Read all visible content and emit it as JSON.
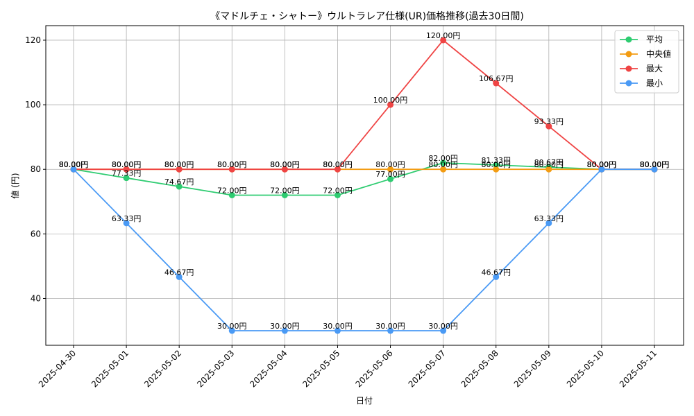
{
  "chart_data": {
    "type": "line",
    "title": "《マドルチェ・シャトー》ウルトラレア仕様(UR)価格推移(過去30日間)",
    "xlabel": "日付",
    "ylabel": "値 (円)",
    "value_suffix": "円",
    "categories": [
      "2025-04-30",
      "2025-05-01",
      "2025-05-02",
      "2025-05-03",
      "2025-05-04",
      "2025-05-05",
      "2025-05-06",
      "2025-05-07",
      "2025-05-08",
      "2025-05-09",
      "2025-05-10",
      "2025-05-11"
    ],
    "ylim": [
      25.5,
      124.5
    ],
    "yticks": [
      40,
      60,
      80,
      100,
      120
    ],
    "grid": true,
    "legend_position": "top-right",
    "series": [
      {
        "name": "平均",
        "color": "#2ecc71",
        "values": [
          80.0,
          77.33,
          74.67,
          72.0,
          72.0,
          72.0,
          77.0,
          82.0,
          81.33,
          80.67,
          80.0,
          80.0
        ]
      },
      {
        "name": "中央値",
        "color": "#f39c12",
        "values": [
          80.0,
          80.0,
          80.0,
          80.0,
          80.0,
          80.0,
          80.0,
          80.0,
          80.0,
          80.0,
          80.0,
          80.0
        ]
      },
      {
        "name": "最大",
        "color": "#ef4444",
        "values": [
          80.0,
          80.0,
          80.0,
          80.0,
          80.0,
          80.0,
          100.0,
          120.0,
          106.67,
          93.33,
          80.0,
          80.0
        ]
      },
      {
        "name": "最小",
        "color": "#4a9af5",
        "values": [
          80.0,
          63.33,
          46.67,
          30.0,
          30.0,
          30.0,
          30.0,
          30.0,
          46.67,
          63.33,
          80.0,
          80.0
        ]
      }
    ]
  }
}
